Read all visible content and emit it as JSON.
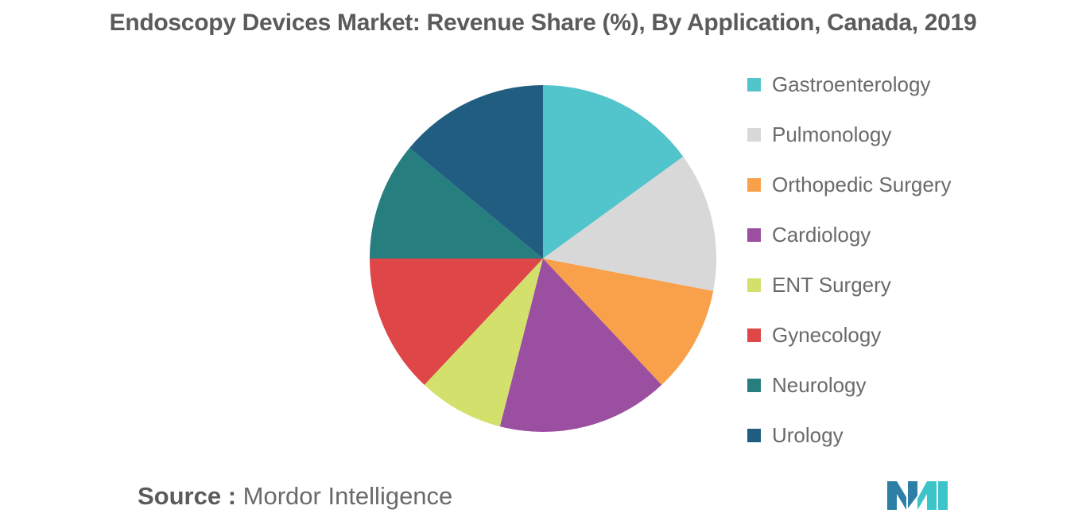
{
  "chart_data": {
    "type": "pie",
    "title": "Endoscopy Devices Market: Revenue Share (%), By Application, Canada, 2019",
    "categories": [
      "Gastroenterology",
      "Pulmonology",
      "Orthopedic Surgery",
      "Cardiology",
      "ENT Surgery",
      "Gynecology",
      "Neurology",
      "Urology"
    ],
    "values": [
      15.0,
      13.0,
      10.0,
      16.0,
      8.0,
      13.0,
      11.0,
      14.0
    ],
    "colors": [
      "#52c4cb",
      "#d8d8d8",
      "#f9a04a",
      "#9b4fa0",
      "#d3e06b",
      "#de4648",
      "#277e7f",
      "#215d80"
    ],
    "legend_position": "right",
    "start_angle": "12 o'clock, clockwise"
  },
  "source": {
    "label": "Source :",
    "value": "Mordor Intelligence"
  },
  "logo": {
    "name": "mordor-intelligence-logo",
    "color_left": "#2d7fa6",
    "color_right": "#3dc4c8"
  }
}
